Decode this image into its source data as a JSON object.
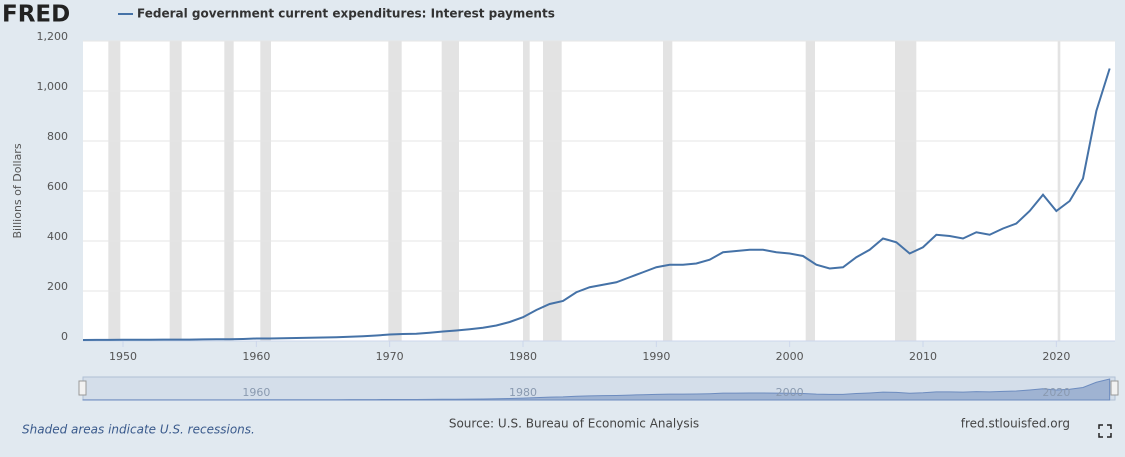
{
  "chart_data": {
    "type": "line",
    "logo": "FRED",
    "y_label": "Billions of Dollars",
    "note": "Shaded areas indicate U.S. recessions.",
    "source": "Source: U.S. Bureau of Economic Analysis",
    "site": "fred.stlouisfed.org",
    "x": [
      1947,
      1948,
      1949,
      1950,
      1951,
      1952,
      1953,
      1954,
      1955,
      1956,
      1957,
      1958,
      1959,
      1960,
      1961,
      1962,
      1963,
      1964,
      1965,
      1966,
      1967,
      1968,
      1969,
      1970,
      1971,
      1972,
      1973,
      1974,
      1975,
      1976,
      1977,
      1978,
      1979,
      1980,
      1981,
      1982,
      1983,
      1984,
      1985,
      1986,
      1987,
      1988,
      1989,
      1990,
      1991,
      1992,
      1993,
      1994,
      1995,
      1996,
      1997,
      1998,
      1999,
      2000,
      2001,
      2002,
      2003,
      2004,
      2005,
      2006,
      2007,
      2008,
      2009,
      2010,
      2011,
      2012,
      2013,
      2014,
      2015,
      2016,
      2017,
      2018,
      2019,
      2020,
      2021,
      2022,
      2023,
      2024
    ],
    "series": [
      {
        "name": "Federal government current expenditures: Interest payments",
        "color": "#4572a7",
        "values": [
          4,
          4.5,
          4.6,
          4.8,
          5,
          5.2,
          5.5,
          5.5,
          5.7,
          6.3,
          7,
          7,
          8,
          10,
          10,
          11,
          12,
          13,
          14,
          15,
          17,
          19,
          22,
          26,
          28,
          29,
          33,
          38,
          42,
          47,
          53,
          62,
          76,
          95,
          124,
          148,
          160,
          195,
          215,
          225,
          235,
          255,
          275,
          295,
          305,
          305,
          310,
          325,
          355,
          360,
          365,
          365,
          355,
          350,
          340,
          305,
          290,
          295,
          335,
          365,
          410,
          395,
          350,
          375,
          425,
          420,
          410,
          435,
          425,
          450,
          470,
          520,
          585,
          520,
          560,
          650,
          920,
          1090
        ]
      }
    ],
    "recessions": [
      [
        1948.9,
        1949.8
      ],
      [
        1953.5,
        1954.4
      ],
      [
        1957.6,
        1958.3
      ],
      [
        1960.3,
        1961.1
      ],
      [
        1969.9,
        1970.9
      ],
      [
        1973.9,
        1975.2
      ],
      [
        1980.0,
        1980.5
      ],
      [
        1981.5,
        1982.9
      ],
      [
        1990.5,
        1991.2
      ],
      [
        2001.2,
        2001.9
      ],
      [
        2007.9,
        2009.5
      ],
      [
        2020.1,
        2020.3
      ]
    ],
    "xlim": [
      1947,
      2024.4
    ],
    "xticks": [
      1950,
      1960,
      1970,
      1980,
      1990,
      2000,
      2010,
      2020
    ],
    "ylim": [
      0,
      1200
    ],
    "yticks": [
      0,
      200,
      400,
      600,
      800,
      {
        "value": 1000,
        "label": "1,000"
      },
      {
        "value": 1200,
        "label": "1,200"
      }
    ],
    "navigator_ticks": [
      1960,
      1980,
      2000,
      2020
    ],
    "grid": true
  }
}
